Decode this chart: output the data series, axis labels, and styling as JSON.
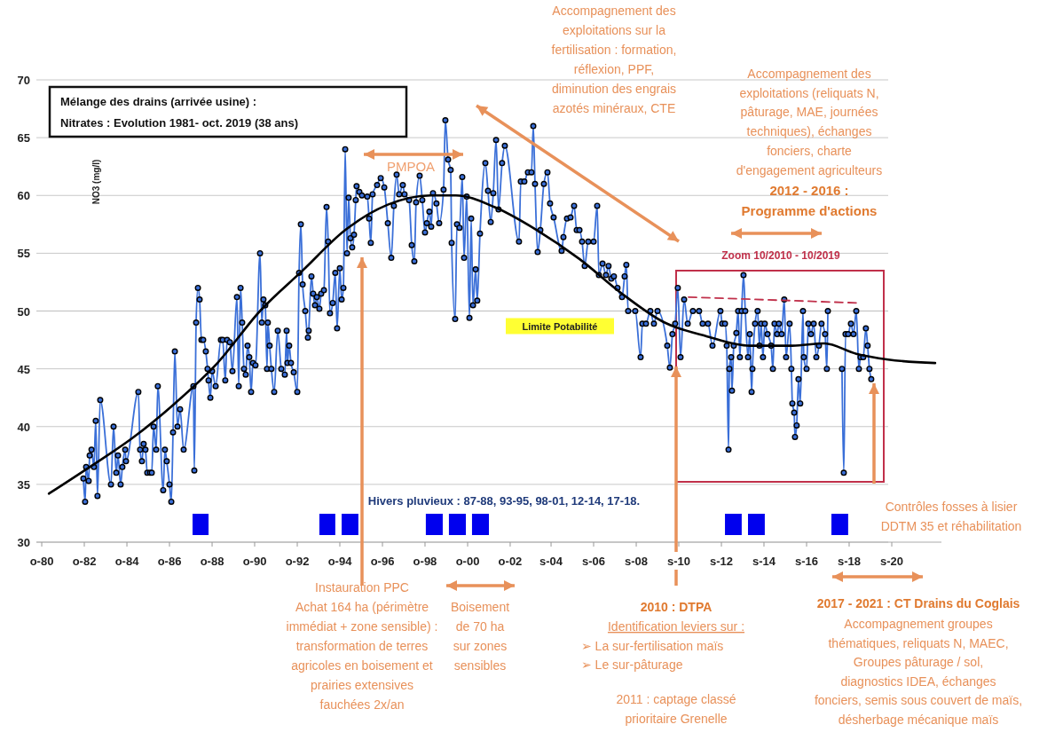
{
  "chart_data": {
    "type": "line",
    "title": "Mélange des drains (arrivée usine) :",
    "subtitle": "Nitrates : Evolution 1981- oct. 2019 (38 ans)",
    "ylabel": "NO3 (mg/l)",
    "xlim": [
      "1980-07-01",
      "2023-01-01"
    ],
    "ylim": [
      30,
      70
    ],
    "xticks": [
      {
        "value": "1980-10-01",
        "label": "o-80"
      },
      {
        "value": "1982-10-01",
        "label": "o-82"
      },
      {
        "value": "1984-10-01",
        "label": "o-84"
      },
      {
        "value": "1986-10-01",
        "label": "o-86"
      },
      {
        "value": "1988-10-01",
        "label": "o-88"
      },
      {
        "value": "1990-10-01",
        "label": "o-90"
      },
      {
        "value": "1992-10-01",
        "label": "o-92"
      },
      {
        "value": "1994-10-01",
        "label": "o-94"
      },
      {
        "value": "1996-10-01",
        "label": "o-96"
      },
      {
        "value": "1998-10-01",
        "label": "o-98"
      },
      {
        "value": "2000-10-01",
        "label": "o-00"
      },
      {
        "value": "2002-10-01",
        "label": "o-02"
      },
      {
        "value": "2004-09-01",
        "label": "s-04"
      },
      {
        "value": "2006-09-01",
        "label": "s-06"
      },
      {
        "value": "2008-09-01",
        "label": "s-08"
      },
      {
        "value": "2010-09-01",
        "label": "s-10"
      },
      {
        "value": "2012-09-01",
        "label": "s-12"
      },
      {
        "value": "2014-09-01",
        "label": "s-14"
      },
      {
        "value": "2016-09-01",
        "label": "s-16"
      },
      {
        "value": "2018-09-01",
        "label": "s-18"
      },
      {
        "value": "2020-09-01",
        "label": "s-20"
      }
    ],
    "yticks": [
      30,
      35,
      40,
      45,
      50,
      55,
      60,
      65,
      70
    ],
    "grid": "y",
    "series": [
      {
        "color": "#3a6fd8",
        "marker": "circle",
        "x": [
          "1982-09-15",
          "1982-10-15",
          "1982-11-01",
          "1982-12-15",
          "1983-01-01",
          "1983-02-01",
          "1983-03-15",
          "1983-04-15",
          "1983-05-15",
          "1983-07-01",
          "1984-01-01",
          "1984-02-15",
          "1984-04-01",
          "1984-05-01",
          "1984-06-15",
          "1984-07-15",
          "1984-09-01",
          "1984-09-15",
          "1985-04-15",
          "1985-05-15",
          "1985-06-15",
          "1985-07-15",
          "1985-08-15",
          "1985-09-15",
          "1985-11-01",
          "1985-12-01",
          "1986-01-01",
          "1986-02-15",
          "1986-03-15",
          "1986-06-15",
          "1986-07-15",
          "1986-08-15",
          "1986-10-01",
          "1986-11-01",
          "1986-12-01",
          "1987-01-01",
          "1987-02-15",
          "1987-04-01",
          "1987-06-01",
          "1987-11-15",
          "1987-12-01",
          "1988-01-01",
          "1988-02-01",
          "1988-03-01",
          "1988-04-01",
          "1988-05-01",
          "1988-06-15",
          "1988-07-15",
          "1988-08-01",
          "1988-09-01",
          "1988-10-01",
          "1988-12-01",
          "1989-03-01",
          "1989-04-01",
          "1989-05-15",
          "1989-06-15",
          "1989-08-01",
          "1989-09-15",
          "1989-12-01",
          "1990-01-01",
          "1990-02-01",
          "1990-03-01",
          "1990-04-01",
          "1990-05-01",
          "1990-06-01",
          "1990-07-01",
          "1990-08-01",
          "1990-09-01",
          "1990-10-15",
          "1991-01-01",
          "1991-02-01",
          "1991-03-01",
          "1991-04-01",
          "1991-05-01",
          "1991-05-15",
          "1991-06-15",
          "1991-07-15",
          "1991-09-01",
          "1991-11-01",
          "1992-01-01",
          "1992-03-01",
          "1992-04-01",
          "1992-04-15",
          "1992-05-15",
          "1992-06-15",
          "1992-08-01",
          "1992-10-01",
          "1992-11-01",
          "1992-12-01",
          "1993-01-01",
          "1993-02-15",
          "1993-04-01",
          "1993-04-15",
          "1993-06-01",
          "1993-07-01",
          "1993-08-01",
          "1993-09-01",
          "1993-10-15",
          "1993-11-15",
          "1994-01-01",
          "1994-02-15",
          "1994-03-15",
          "1994-04-15",
          "1994-06-01",
          "1994-07-15",
          "1994-08-15",
          "1994-10-01",
          "1994-11-01",
          "1994-12-01",
          "1995-01-01",
          "1995-02-01",
          "1995-03-01",
          "1995-04-01",
          "1995-05-01",
          "1995-06-01",
          "1995-07-01",
          "1995-07-15",
          "1995-09-01",
          "1995-10-15",
          "1996-01-15",
          "1996-02-15",
          "1996-03-15",
          "1996-04-15",
          "1996-07-01",
          "1996-09-01",
          "1996-11-01",
          "1997-01-01",
          "1997-03-01",
          "1997-04-15",
          "1997-06-01",
          "1997-07-15",
          "1997-09-15",
          "1997-10-15",
          "1998-01-01",
          "1998-02-15",
          "1998-04-01",
          "1998-05-01",
          "1998-07-01",
          "1998-08-15",
          "1998-10-01",
          "1998-11-01",
          "1998-12-15",
          "1999-01-15",
          "1999-02-15",
          "1999-04-15",
          "1999-06-01",
          "1999-08-15",
          "1999-09-15",
          "1999-11-01",
          "1999-12-15",
          "2000-01-01",
          "2000-03-01",
          "2000-04-01",
          "2000-05-15",
          "2000-07-01",
          "2000-08-01",
          "2000-09-15",
          "2000-11-01",
          "2000-12-01",
          "2001-01-01",
          "2001-02-15",
          "2001-03-15",
          "2001-05-01",
          "2001-08-01",
          "2001-09-15",
          "2001-11-01",
          "2001-12-15",
          "2002-02-01",
          "2002-03-15",
          "2002-05-15",
          "2002-07-01",
          "2003-03-01",
          "2003-04-01",
          "2003-06-01",
          "2003-08-01",
          "2003-10-01",
          "2003-11-01",
          "2003-12-01",
          "2004-01-15",
          "2004-03-01",
          "2004-05-01",
          "2004-07-01",
          "2004-08-15",
          "2004-10-15",
          "2005-03-01",
          "2005-04-01",
          "2005-06-01",
          "2005-08-01",
          "2005-10-01",
          "2005-11-15",
          "2006-01-01",
          "2006-02-15",
          "2006-04-01",
          "2006-06-01",
          "2006-09-01",
          "2006-11-01",
          "2006-12-01",
          "2007-02-01",
          "2007-04-01",
          "2007-05-15",
          "2007-07-01",
          "2007-08-15",
          "2007-10-15",
          "2008-01-01",
          "2008-02-15",
          "2008-03-15",
          "2008-04-15",
          "2008-08-15",
          "2008-11-15",
          "2008-12-15",
          "2009-02-15",
          "2009-05-01",
          "2009-07-01",
          "2009-09-01",
          "2010-02-15",
          "2010-04-01",
          "2010-05-15",
          "2010-07-01",
          "2010-08-15",
          "2010-10-01",
          "2010-12-01",
          "2011-02-01",
          "2011-05-01",
          "2011-08-15",
          "2011-10-15",
          "2012-01-15",
          "2012-04-01",
          "2012-08-15",
          "2012-09-15",
          "2012-11-01",
          "2012-12-01",
          "2013-01-01",
          "2013-01-15",
          "2013-02-15",
          "2013-03-01",
          "2013-04-01",
          "2013-05-15",
          "2013-06-15",
          "2013-07-15",
          "2013-08-15",
          "2013-09-15",
          "2013-10-15",
          "2013-12-01",
          "2014-01-01",
          "2014-02-01",
          "2014-02-15",
          "2014-04-01",
          "2014-05-15",
          "2014-06-15",
          "2014-07-15",
          "2014-08-15",
          "2014-09-15",
          "2014-11-01",
          "2015-01-01",
          "2015-02-01",
          "2015-03-01",
          "2015-04-15",
          "2015-05-15",
          "2015-07-01",
          "2015-08-15",
          "2015-09-15",
          "2015-11-15",
          "2015-12-15",
          "2016-01-01",
          "2016-02-01",
          "2016-02-15",
          "2016-03-15",
          "2016-04-15",
          "2016-05-15",
          "2016-07-01",
          "2016-07-15",
          "2016-09-01",
          "2016-10-01",
          "2016-11-15",
          "2017-01-01",
          "2017-02-15",
          "2017-04-01",
          "2017-05-15",
          "2017-07-15",
          "2017-08-15",
          "2017-09-01",
          "2017-12-15",
          "2018-05-01",
          "2018-06-01",
          "2018-07-01",
          "2018-08-15",
          "2018-10-01",
          "2018-11-15",
          "2019-01-01",
          "2019-02-15",
          "2019-03-15",
          "2019-05-01",
          "2019-06-15",
          "2019-07-15",
          "2019-08-15",
          "2019-09-15"
        ],
        "values": [
          35.5,
          33.5,
          36.5,
          35.3,
          37.5,
          38,
          36.5,
          40.5,
          34,
          42.3,
          35,
          40,
          36,
          37.5,
          35,
          36.5,
          38,
          37,
          43,
          38,
          37,
          38.5,
          38,
          36,
          36,
          36,
          40,
          38,
          43.5,
          34.5,
          38,
          37,
          35,
          33.5,
          39.5,
          46.5,
          40,
          41.5,
          38,
          43.5,
          36.2,
          49,
          52,
          51,
          47.5,
          47.5,
          46.5,
          45,
          44,
          42.5,
          44.8,
          43.5,
          47.5,
          47.5,
          44,
          47.5,
          47.3,
          44.8,
          51.2,
          43.5,
          52,
          49,
          45,
          44.5,
          47,
          46,
          43,
          45.5,
          45.3,
          55,
          49,
          51,
          50.5,
          45,
          49,
          47,
          45,
          43,
          48.3,
          45,
          44.5,
          48.3,
          45.5,
          47,
          45.5,
          44.7,
          43,
          53.3,
          57.5,
          52.3,
          50,
          47.7,
          48.3,
          53,
          51.5,
          50.5,
          51.2,
          50.2,
          51.5,
          51.8,
          59,
          56,
          49.8,
          50.7,
          53.3,
          48.5,
          53.7,
          51,
          52,
          64,
          55,
          59.8,
          56.3,
          55.5,
          56.6,
          59.6,
          60.8,
          60.3,
          60,
          59.9,
          58,
          55.9,
          60.1,
          60.9,
          61.5,
          60.7,
          57.6,
          54.6,
          59.1,
          61.8,
          60.1,
          60.9,
          60.1,
          59.6,
          55.7,
          54.3,
          59.4,
          61.7,
          59.6,
          56.8,
          57.6,
          58.6,
          57.3,
          60.2,
          59.3,
          57.6,
          60.5,
          66.5,
          63.1,
          62.2,
          55.9,
          49.3,
          57.5,
          57.2,
          61.6,
          54.6,
          59.9,
          49.4,
          58,
          50.5,
          53.6,
          50.9,
          56.7,
          62.8,
          60.4,
          57.7,
          60.2,
          64.8,
          58.8,
          62.8,
          64.3,
          56,
          61.2,
          61.2,
          62,
          62,
          66,
          61,
          55.1,
          57,
          61,
          62,
          59.3,
          58.1,
          55.2,
          56.4,
          58,
          58.1,
          59.1,
          57,
          57,
          56,
          53.9,
          56,
          56,
          59.1,
          53.1,
          54.1,
          53.1,
          53.9,
          52.8,
          53,
          52,
          51.2,
          53,
          54,
          50,
          50,
          46,
          48.9,
          48.9,
          50,
          48.9,
          50,
          47,
          45.1,
          48,
          48.9,
          52,
          46,
          51,
          48.9,
          50,
          50,
          48.9,
          48.9,
          47,
          50,
          48.9,
          48.9,
          47,
          38,
          45,
          46,
          43.1,
          47,
          48.1,
          50,
          46,
          50,
          53.1,
          50,
          46,
          48,
          43,
          45,
          48.9,
          50,
          47,
          48.9,
          46,
          48.9,
          48,
          47,
          45,
          48.9,
          48,
          48.9,
          48,
          51,
          46,
          48.9,
          45,
          42,
          41.2,
          39.1,
          40.1,
          44.1,
          42,
          50,
          46,
          45,
          48.9,
          48,
          48.9,
          46,
          47,
          48.9,
          48,
          45,
          50,
          null,
          45,
          36,
          48,
          48,
          48.9,
          48,
          50,
          45,
          46,
          46,
          48.5,
          47,
          45,
          44.1
        ]
      },
      {
        "color": "#000000",
        "marker": "none",
        "x": [
          "1981-02-01",
          "1983-01-01",
          "1985-01-01",
          "1987-01-01",
          "1989-01-01",
          "1991-01-01",
          "1993-01-01",
          "1995-01-01",
          "1997-01-01",
          "1999-01-01",
          "2000-03-15",
          "2002-01-01",
          "2004-01-01",
          "2006-01-01",
          "2008-01-01",
          "2010-01-01",
          "2012-01-01",
          "2014-01-01",
          "2016-01-01",
          "2017-07-01",
          "2019-01-01",
          "2020-07-01",
          "2022-09-15"
        ],
        "values": [
          34.2,
          36.5,
          39,
          42,
          45.5,
          50,
          53.5,
          57,
          59.2,
          60,
          60,
          59,
          57,
          54.5,
          51.5,
          49,
          47.8,
          47,
          47,
          47.2,
          46.3,
          45.8,
          45.5
        ]
      },
      {
        "color": "#c0304a",
        "marker": "none",
        "line_style": "dashed",
        "x": [
          "2011-02-15",
          "2019-02-01"
        ],
        "values": [
          51.2,
          50.7
        ]
      }
    ],
    "ref_lines": [
      {
        "axis": "y",
        "value": 50,
        "label": "Limite Potabilité"
      }
    ],
    "bands": [
      {
        "axis": "x",
        "from": "1987-11-01",
        "to": "1988-08-01",
        "color": "#0000ee"
      },
      {
        "axis": "x",
        "from": "1993-10-15",
        "to": "1994-07-15",
        "color": "#0000ee"
      },
      {
        "axis": "x",
        "from": "1994-11-01",
        "to": "1995-08-15",
        "color": "#0000ee"
      },
      {
        "axis": "x",
        "from": "1998-10-15",
        "to": "1999-08-01",
        "color": "#0000ee"
      },
      {
        "axis": "x",
        "from": "1999-11-15",
        "to": "2000-09-01",
        "color": "#0000ee"
      },
      {
        "axis": "x",
        "from": "2000-12-15",
        "to": "2001-10-01",
        "color": "#0000ee"
      },
      {
        "axis": "x",
        "from": "2012-11-01",
        "to": "2013-08-15",
        "color": "#0000ee"
      },
      {
        "axis": "x",
        "from": "2013-12-01",
        "to": "2014-09-15",
        "color": "#0000ee"
      },
      {
        "axis": "x",
        "from": "2017-11-01",
        "to": "2018-08-15",
        "color": "#0000ee"
      }
    ],
    "annotations": [
      "Accompagnement des\nexploitations sur la\nfertilisation : formation,\nréflexion, PPF,\ndiminution des engrais\nazotés minéraux, CTE",
      "Accompagnement des\nexploitations (reliquats N,\npâturage, MAE, journées\ntechniques), échanges\nfonciers, charte\nd'engagement agriculteurs",
      "2012 - 2016 :\nProgramme d'actions",
      "PMPOA",
      "Zoom 10/2010 - 10/2019",
      "Hivers pluvieux : 87-88, 93-95, 98-01, 12-14, 17-18.",
      "Contrôles fosses à lisier\nDDTM 35 et réhabilitation",
      "Instauration PPC\nAchat 164 ha (périmètre\nimmédiat + zone sensible) :\ntransformation de terres\nagricoles en boisement et\nprairies extensives\nfauchées 2x/an",
      "Boisement\nde 70 ha\nsur zones\nsensibles",
      "2010 : DTPA",
      "Identification leviers sur :",
      "➢ La sur-fertilisation maïs\n➢ Le sur-pâturage",
      "2011 : captage classé\nprioritaire Grenelle",
      "2017 - 2021 : CT Drains du Coglais",
      "Accompagnement groupes\nthématiques, reliquats N, MAEC,\nGroupes pâturage / sol,\ndiagnostics IDEA, échanges\nfonciers, semis sous couvert de maïs,\ndésherbage mécanique maïs"
    ]
  }
}
